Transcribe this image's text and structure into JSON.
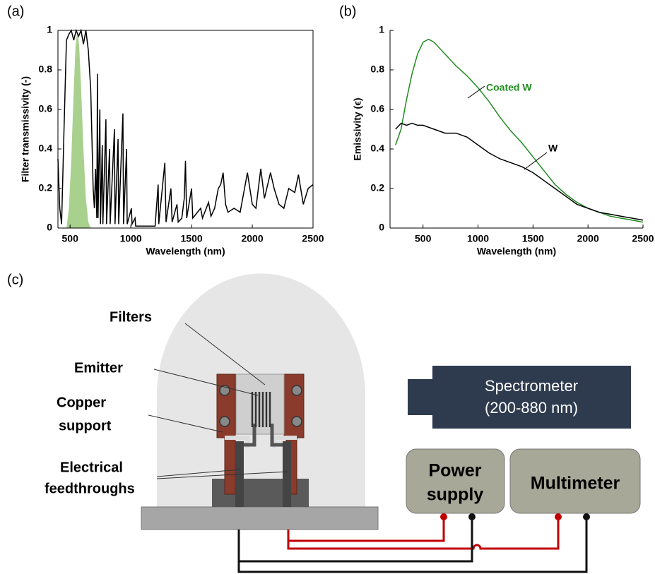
{
  "panel_labels": [
    "(a)",
    "(b)",
    "(c)"
  ],
  "chart_data": [
    {
      "type": "line",
      "box": true,
      "ylabel": "Filter transmissivity (-)",
      "xlabel": "Wavelength (nm)",
      "xlim": [
        400,
        2500
      ],
      "xticks": [
        500,
        1000,
        1500,
        2000,
        2500
      ],
      "ylim": [
        0,
        1
      ],
      "yticks": [
        0,
        0.2,
        0.4,
        0.6,
        0.8,
        1
      ],
      "series": [
        {
          "color": "#a9d18e",
          "fill": true,
          "x": [
            470,
            490,
            510,
            530,
            545,
            560,
            575,
            590,
            610,
            630,
            650,
            670
          ],
          "values": [
            0,
            0.1,
            0.35,
            0.7,
            0.92,
            1,
            0.92,
            0.72,
            0.4,
            0.15,
            0.03,
            0
          ]
        },
        {
          "color": "#000000",
          "fill": false,
          "x": [
            400,
            415,
            430,
            450,
            470,
            490,
            510,
            530,
            550,
            570,
            590,
            610,
            630,
            650,
            670,
            690,
            700,
            710,
            720,
            725,
            730,
            745,
            750,
            765,
            770,
            795,
            800,
            825,
            830,
            865,
            870,
            895,
            900,
            935,
            940,
            965,
            970,
            1005,
            1010,
            1035,
            1040,
            1200,
            1225,
            1230,
            1280,
            1290,
            1330,
            1340,
            1380,
            1390,
            1420,
            1440,
            1450,
            1460,
            1500,
            1510,
            1575,
            1590,
            1640,
            1660,
            1690,
            1720,
            1740,
            1760,
            1780,
            1800,
            1850,
            1900,
            1960,
            2000,
            2030,
            2070,
            2100,
            2150,
            2180,
            2220,
            2260,
            2300,
            2350,
            2380,
            2420,
            2460,
            2500
          ],
          "values": [
            0.35,
            0.1,
            0.02,
            0.5,
            0.95,
            0.98,
            1,
            0.95,
            1,
            0.97,
            1,
            0.93,
            1,
            0.9,
            0.7,
            0.2,
            0.1,
            0.3,
            0.05,
            0.78,
            0.05,
            0.6,
            0.02,
            0.42,
            0.02,
            0.55,
            0.02,
            0.4,
            0.02,
            0.5,
            0.02,
            0.45,
            0.02,
            0.58,
            0.02,
            0.4,
            0.02,
            0.1,
            0.02,
            0.05,
            0.01,
            0.01,
            0.22,
            0.02,
            0.33,
            0.03,
            0.2,
            0.03,
            0.12,
            0.03,
            0.05,
            0.15,
            0.34,
            0.05,
            0.2,
            0.05,
            0.1,
            0.05,
            0.13,
            0.06,
            0.1,
            0.2,
            0.22,
            0.28,
            0.12,
            0.08,
            0.1,
            0.08,
            0.28,
            0.12,
            0.1,
            0.3,
            0.15,
            0.28,
            0.2,
            0.12,
            0.1,
            0.2,
            0.18,
            0.27,
            0.12,
            0.2,
            0.22
          ]
        }
      ]
    },
    {
      "type": "line",
      "box": false,
      "ylabel": "Emissivity (ϵ)",
      "xlabel": "Wavelength (nm)",
      "xlim": [
        200,
        2500
      ],
      "xticks": [
        500,
        1000,
        1500,
        2000,
        2500
      ],
      "ylim": [
        0,
        1
      ],
      "yticks": [
        0,
        0.2,
        0.4,
        0.6,
        0.8,
        1
      ],
      "series": [
        {
          "name": "Coated W",
          "color": "#1e8c1e",
          "fill": false,
          "x": [
            250,
            300,
            350,
            400,
            450,
            500,
            550,
            600,
            700,
            800,
            900,
            1000,
            1100,
            1200,
            1300,
            1400,
            1500,
            1600,
            1700,
            1800,
            1900,
            2000,
            2100,
            2200,
            2300,
            2400,
            2500
          ],
          "values": [
            0.42,
            0.5,
            0.65,
            0.78,
            0.88,
            0.94,
            0.955,
            0.94,
            0.88,
            0.82,
            0.77,
            0.71,
            0.64,
            0.56,
            0.49,
            0.43,
            0.36,
            0.29,
            0.22,
            0.17,
            0.13,
            0.1,
            0.08,
            0.06,
            0.05,
            0.04,
            0.03
          ]
        },
        {
          "name": "W",
          "color": "#000000",
          "fill": false,
          "x": [
            250,
            300,
            350,
            400,
            450,
            500,
            600,
            700,
            800,
            900,
            1000,
            1100,
            1200,
            1300,
            1400,
            1500,
            1600,
            1700,
            1800,
            1900,
            2000,
            2100,
            2200,
            2300,
            2400,
            2500
          ],
          "values": [
            0.5,
            0.53,
            0.52,
            0.53,
            0.52,
            0.52,
            0.5,
            0.48,
            0.48,
            0.46,
            0.42,
            0.38,
            0.35,
            0.33,
            0.31,
            0.28,
            0.24,
            0.2,
            0.16,
            0.12,
            0.1,
            0.08,
            0.07,
            0.06,
            0.05,
            0.04
          ]
        }
      ]
    }
  ],
  "diagram": {
    "filters": "Filters",
    "emitter": "Emitter",
    "copper_support": [
      "Copper",
      "support"
    ],
    "electrical_feedthroughs": [
      "Electrical",
      "feedthroughs"
    ],
    "spectrometer": [
      "Spectrometer",
      "(200-880 nm)"
    ],
    "power_supply": [
      "Power",
      "supply"
    ],
    "multimeter": "Multimeter"
  }
}
